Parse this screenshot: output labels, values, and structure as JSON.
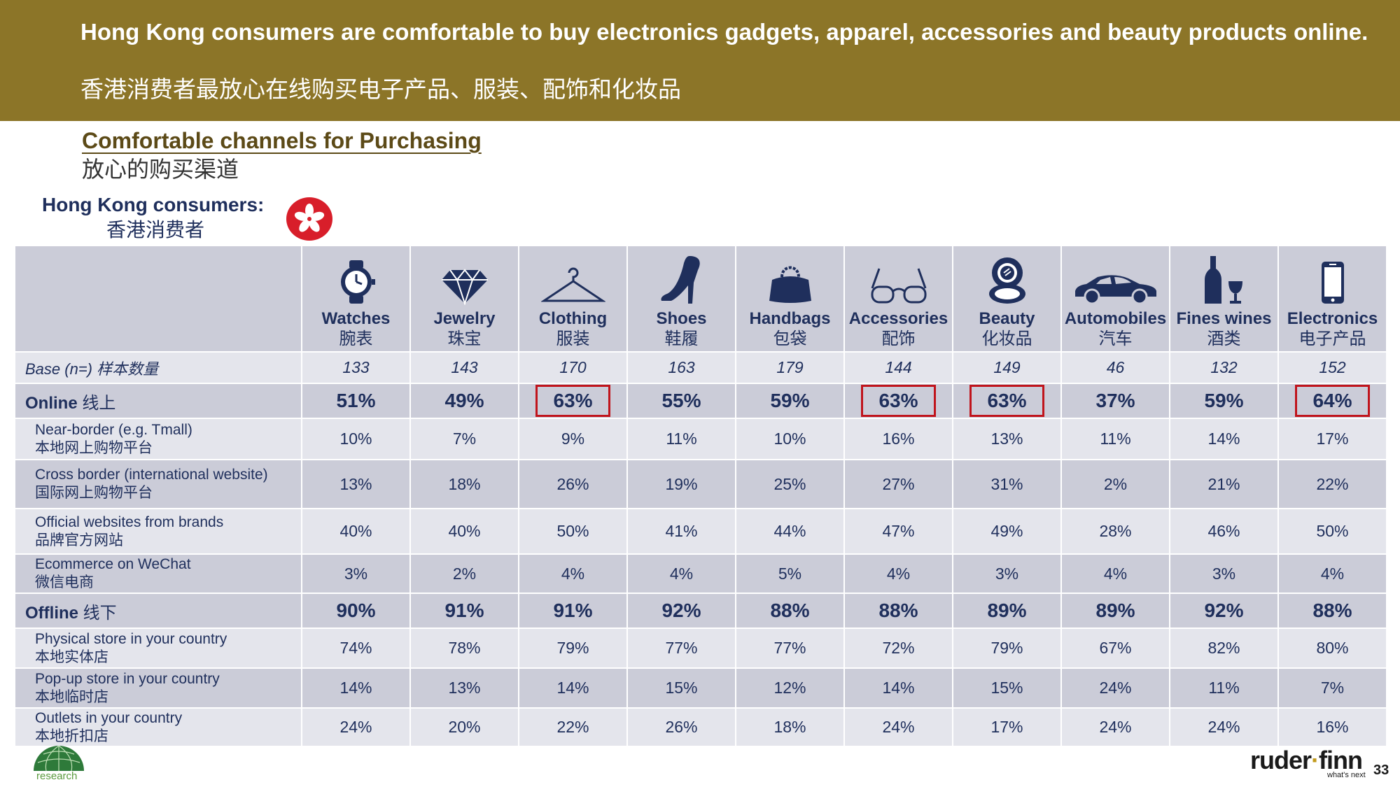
{
  "header": {
    "title_en": "Hong Kong consumers are comfortable to buy electronics gadgets, apparel, accessories and beauty products online.",
    "title_zh": "香港消费者最放心在线购买电子产品、服装、配饰和化妆品"
  },
  "section": {
    "title_en": "Comfortable channels for Purchasing",
    "title_zh": "放心的购买渠道"
  },
  "segment": {
    "label_en": "Hong Kong consumers:",
    "label_zh": "香港消费者",
    "flag_icon": "hong-kong-flag-icon",
    "flag_color": "#d81e2a"
  },
  "categories": [
    {
      "en": "Watches",
      "zh": "腕表",
      "icon": "watch-icon"
    },
    {
      "en": "Jewelry",
      "zh": "珠宝",
      "icon": "diamond-icon"
    },
    {
      "en": "Clothing",
      "zh": "服装",
      "icon": "hanger-icon"
    },
    {
      "en": "Shoes",
      "zh": "鞋履",
      "icon": "high-heel-icon"
    },
    {
      "en": "Handbags",
      "zh": "包袋",
      "icon": "handbag-icon"
    },
    {
      "en": "Accessories",
      "zh": "配饰",
      "icon": "glasses-icon"
    },
    {
      "en": "Beauty",
      "zh": "化妆品",
      "icon": "compact-icon"
    },
    {
      "en": "Automobiles",
      "zh": "汽车",
      "icon": "car-icon"
    },
    {
      "en": "Fines wines",
      "zh": "酒类",
      "icon": "wine-icon"
    },
    {
      "en": "Electronics",
      "zh": "电子产品",
      "icon": "smartphone-icon"
    }
  ],
  "base": {
    "label_en": "Base (n=)",
    "label_zh": "样本数量",
    "values": [
      "133",
      "143",
      "170",
      "163",
      "179",
      "144",
      "149",
      "46",
      "132",
      "152"
    ]
  },
  "online": {
    "label_en": "Online",
    "label_zh": "线上",
    "values": [
      "51%",
      "49%",
      "63%",
      "55%",
      "59%",
      "63%",
      "63%",
      "37%",
      "59%",
      "64%"
    ],
    "highlighted": [
      false,
      false,
      true,
      false,
      false,
      true,
      true,
      false,
      false,
      true
    ],
    "highlight_color": "#c0141c",
    "rows": [
      {
        "en": "Near-border (e.g. Tmall)",
        "zh": "本地网上购物平台",
        "values": [
          "10%",
          "7%",
          "9%",
          "11%",
          "10%",
          "16%",
          "13%",
          "11%",
          "14%",
          "17%"
        ]
      },
      {
        "en": "Cross border (international website)",
        "zh": "国际网上购物平台",
        "values": [
          "13%",
          "18%",
          "26%",
          "19%",
          "25%",
          "27%",
          "31%",
          "2%",
          "21%",
          "22%"
        ]
      },
      {
        "en": "Official websites from brands",
        "zh": "品牌官方网站",
        "values": [
          "40%",
          "40%",
          "50%",
          "41%",
          "44%",
          "47%",
          "49%",
          "28%",
          "46%",
          "50%"
        ]
      },
      {
        "en": "Ecommerce on WeChat",
        "zh": "微信电商",
        "values": [
          "3%",
          "2%",
          "4%",
          "4%",
          "5%",
          "4%",
          "3%",
          "4%",
          "3%",
          "4%"
        ]
      }
    ]
  },
  "offline": {
    "label_en": "Offline",
    "label_zh": "线下",
    "values": [
      "90%",
      "91%",
      "91%",
      "92%",
      "88%",
      "88%",
      "89%",
      "89%",
      "92%",
      "88%"
    ],
    "rows": [
      {
        "en": "Physical store in your country",
        "zh": "本地实体店",
        "values": [
          "74%",
          "78%",
          "79%",
          "77%",
          "77%",
          "72%",
          "79%",
          "67%",
          "82%",
          "80%"
        ]
      },
      {
        "en": "Pop-up store in your country",
        "zh": "本地临时店",
        "values": [
          "14%",
          "13%",
          "14%",
          "15%",
          "12%",
          "14%",
          "15%",
          "24%",
          "11%",
          "7%"
        ]
      },
      {
        "en": "Outlets in your country",
        "zh": "本地折扣店",
        "values": [
          "24%",
          "20%",
          "22%",
          "26%",
          "18%",
          "24%",
          "17%",
          "24%",
          "24%",
          "16%"
        ]
      }
    ]
  },
  "footer": {
    "research_label": "research",
    "brand_left": "ruder",
    "brand_dot": "·",
    "brand_right": "finn",
    "brand_tagline": "what's next",
    "page_number": "33",
    "brand_color": "#c29a1c"
  },
  "colors": {
    "header_band": "#8c7528",
    "dark_row": "#cbccd8",
    "light_row": "#e4e5ec",
    "text_navy": "#1f2f5c"
  }
}
